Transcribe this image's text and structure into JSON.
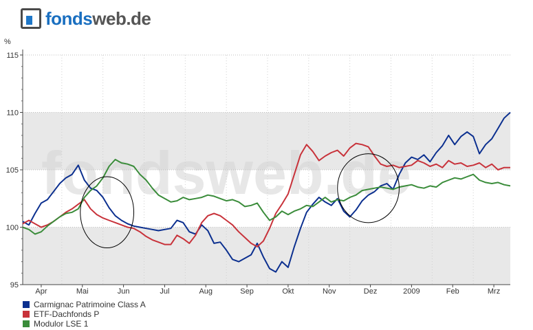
{
  "logo": {
    "part1": "fonds",
    "part2": "web.de"
  },
  "chart_data": {
    "type": "line",
    "unit_label": "%",
    "ylim": [
      95,
      115
    ],
    "yticks": [
      95,
      100,
      105,
      110,
      115
    ],
    "x_ticks": [
      "Apr",
      "Mai",
      "Jun",
      "Jul",
      "Aug",
      "Sep",
      "Okt",
      "Nov",
      "Dez",
      "2009",
      "Feb",
      "Mrz"
    ],
    "x_tick_pos": [
      1.0,
      2.0,
      3.0,
      4.0,
      5.0,
      6.0,
      7.0,
      8.0,
      9.0,
      10.0,
      11.0,
      12.0
    ],
    "x_range": [
      0.55,
      12.4
    ],
    "watermark": "fondsweb.de",
    "grid": true,
    "series": [
      {
        "name": "Carmignac Patrimoine Class A",
        "color": "#0b2f8f",
        "x": [
          0.55,
          0.7,
          0.85,
          1.0,
          1.15,
          1.3,
          1.45,
          1.6,
          1.75,
          1.9,
          2.05,
          2.2,
          2.35,
          2.5,
          2.65,
          2.8,
          2.95,
          3.1,
          3.25,
          3.4,
          3.55,
          3.7,
          3.85,
          4.0,
          4.15,
          4.3,
          4.45,
          4.6,
          4.75,
          4.9,
          5.05,
          5.2,
          5.35,
          5.5,
          5.65,
          5.8,
          5.95,
          6.1,
          6.25,
          6.4,
          6.55,
          6.7,
          6.85,
          7.0,
          7.15,
          7.3,
          7.45,
          7.6,
          7.75,
          7.9,
          8.05,
          8.2,
          8.35,
          8.5,
          8.65,
          8.8,
          8.95,
          9.1,
          9.25,
          9.4,
          9.55,
          9.7,
          9.85,
          10.0,
          10.15,
          10.3,
          10.45,
          10.6,
          10.75,
          10.9,
          11.05,
          11.2,
          11.35,
          11.5,
          11.65,
          11.8,
          11.95,
          12.1,
          12.25,
          12.4
        ],
        "values": [
          100.5,
          100.2,
          101.2,
          102.1,
          102.4,
          103.1,
          103.8,
          104.3,
          104.6,
          105.4,
          104.1,
          103.4,
          103.2,
          102.6,
          101.7,
          101.0,
          100.6,
          100.3,
          100.1,
          100.0,
          99.9,
          99.8,
          99.7,
          99.8,
          99.9,
          100.6,
          100.4,
          99.6,
          99.4,
          100.2,
          99.7,
          98.6,
          98.7,
          98.0,
          97.2,
          97.0,
          97.3,
          97.6,
          98.6,
          97.4,
          96.4,
          96.1,
          97.0,
          96.5,
          98.3,
          99.9,
          101.3,
          102.0,
          102.6,
          102.2,
          101.9,
          102.5,
          101.4,
          100.9,
          101.5,
          102.3,
          102.8,
          103.1,
          103.6,
          103.8,
          103.3,
          104.6,
          105.6,
          106.1,
          105.9,
          106.3,
          105.7,
          106.5,
          107.1,
          108.0,
          107.2,
          107.9,
          108.3,
          107.9,
          106.4,
          107.2,
          107.7,
          108.6,
          109.5,
          110.0
        ]
      },
      {
        "name": "ETF-Dachfonds P",
        "color": "#c8323a",
        "x": [
          0.55,
          0.7,
          0.85,
          1.0,
          1.15,
          1.3,
          1.45,
          1.6,
          1.75,
          1.9,
          2.05,
          2.2,
          2.35,
          2.5,
          2.65,
          2.8,
          2.95,
          3.1,
          3.25,
          3.4,
          3.55,
          3.7,
          3.85,
          4.0,
          4.15,
          4.3,
          4.45,
          4.6,
          4.75,
          4.9,
          5.05,
          5.2,
          5.35,
          5.5,
          5.65,
          5.8,
          5.95,
          6.1,
          6.25,
          6.4,
          6.55,
          6.7,
          6.85,
          7.0,
          7.15,
          7.3,
          7.45,
          7.6,
          7.75,
          7.9,
          8.05,
          8.2,
          8.35,
          8.5,
          8.65,
          8.8,
          8.95,
          9.1,
          9.25,
          9.4,
          9.55,
          9.7,
          9.85,
          10.0,
          10.15,
          10.3,
          10.45,
          10.6,
          10.75,
          10.9,
          11.05,
          11.2,
          11.35,
          11.5,
          11.65,
          11.8,
          11.95,
          12.1,
          12.25,
          12.4
        ],
        "values": [
          100.3,
          100.6,
          100.3,
          100.0,
          100.2,
          100.5,
          100.9,
          101.3,
          101.6,
          102.0,
          102.4,
          101.6,
          101.1,
          100.8,
          100.6,
          100.4,
          100.2,
          100.0,
          99.9,
          99.6,
          99.2,
          98.9,
          98.7,
          98.5,
          98.5,
          99.3,
          99.0,
          98.6,
          99.3,
          100.4,
          101.0,
          101.2,
          101.0,
          100.6,
          100.2,
          99.6,
          99.1,
          98.6,
          98.3,
          98.8,
          99.9,
          101.2,
          102.0,
          102.9,
          104.6,
          106.3,
          107.2,
          106.6,
          105.8,
          106.2,
          106.5,
          106.7,
          106.2,
          106.9,
          107.3,
          107.2,
          107.0,
          106.2,
          105.5,
          105.3,
          105.4,
          105.2,
          105.3,
          105.4,
          105.8,
          105.6,
          105.3,
          105.5,
          105.2,
          105.8,
          105.5,
          105.6,
          105.3,
          105.4,
          105.6,
          105.2,
          105.5,
          105.0,
          105.2,
          105.2
        ]
      },
      {
        "name": "Modulor LSE 1",
        "color": "#3a8c3a",
        "x": [
          0.55,
          0.7,
          0.85,
          1.0,
          1.15,
          1.3,
          1.45,
          1.6,
          1.75,
          1.9,
          2.05,
          2.2,
          2.35,
          2.5,
          2.65,
          2.8,
          2.95,
          3.1,
          3.25,
          3.4,
          3.55,
          3.7,
          3.85,
          4.0,
          4.15,
          4.3,
          4.45,
          4.6,
          4.75,
          4.9,
          5.05,
          5.2,
          5.35,
          5.5,
          5.65,
          5.8,
          5.95,
          6.1,
          6.25,
          6.4,
          6.55,
          6.7,
          6.85,
          7.0,
          7.15,
          7.3,
          7.45,
          7.6,
          7.75,
          7.9,
          8.05,
          8.2,
          8.35,
          8.5,
          8.65,
          8.8,
          8.95,
          9.1,
          9.25,
          9.4,
          9.55,
          9.7,
          9.85,
          10.0,
          10.15,
          10.3,
          10.45,
          10.6,
          10.75,
          10.9,
          11.05,
          11.2,
          11.35,
          11.5,
          11.65,
          11.8,
          11.95,
          12.1,
          12.25,
          12.4
        ],
        "values": [
          100.0,
          99.8,
          99.4,
          99.6,
          100.1,
          100.5,
          100.9,
          101.2,
          101.3,
          101.6,
          102.6,
          103.2,
          103.6,
          104.3,
          105.3,
          105.9,
          105.6,
          105.5,
          105.3,
          104.6,
          104.1,
          103.4,
          102.8,
          102.5,
          102.2,
          102.3,
          102.6,
          102.4,
          102.5,
          102.6,
          102.8,
          102.7,
          102.5,
          102.3,
          102.4,
          102.2,
          101.8,
          101.9,
          102.1,
          101.3,
          100.6,
          100.9,
          101.4,
          101.1,
          101.4,
          101.6,
          101.9,
          101.8,
          102.2,
          102.6,
          102.2,
          102.4,
          102.3,
          102.6,
          102.8,
          103.2,
          103.3,
          103.4,
          103.5,
          103.4,
          103.3,
          103.5,
          103.6,
          103.7,
          103.5,
          103.4,
          103.6,
          103.5,
          103.9,
          104.1,
          104.3,
          104.2,
          104.4,
          104.6,
          104.1,
          103.9,
          103.8,
          103.9,
          103.7,
          103.6
        ]
      }
    ],
    "annotations": [
      {
        "type": "ellipse",
        "x": 2.6,
        "y": 101.3,
        "rx": 0.65,
        "ry": 3.1
      },
      {
        "type": "ellipse",
        "x": 8.95,
        "y": 103.4,
        "rx": 0.75,
        "ry": 3.0
      }
    ]
  }
}
